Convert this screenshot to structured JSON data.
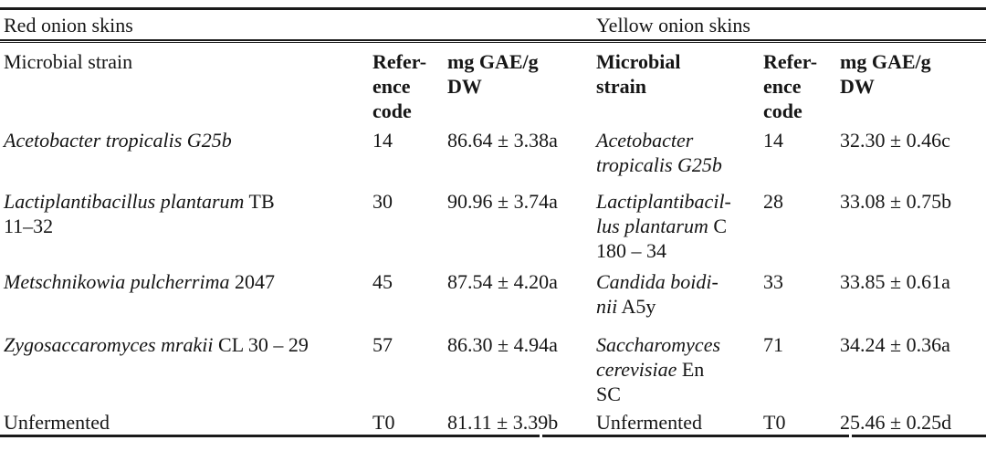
{
  "document": {
    "background": "#ffffff",
    "text_color": "#161616",
    "rule_color": "#1a1a1a"
  },
  "table": {
    "sections": [
      {
        "title": "Red onion skins"
      },
      {
        "title": "Yellow onion skins"
      }
    ],
    "column_headers": [
      {
        "lines": [
          "Microbial strain"
        ],
        "bold": false
      },
      {
        "lines": [
          "Refer-",
          "ence",
          "code"
        ],
        "bold": true
      },
      {
        "lines": [
          "mg GAE/g",
          "DW"
        ],
        "bold": true
      },
      {
        "lines": [
          "Microbial",
          "strain"
        ],
        "bold": true
      },
      {
        "lines": [
          "Refer-",
          "ence",
          "code"
        ],
        "bold": true
      },
      {
        "lines": [
          "mg GAE/g",
          "DW"
        ],
        "bold": true
      }
    ],
    "rows": [
      {
        "red": {
          "strain_lines": [
            [
              {
                "t": "Acetobacter tropicalis G25b",
                "i": true
              }
            ]
          ],
          "code": "14",
          "value": "86.64 ± 3.38a"
        },
        "yellow": {
          "strain_lines": [
            [
              {
                "t": "Acetobacter",
                "i": true
              }
            ],
            [
              {
                "t": "tropicalis G25b",
                "i": true
              }
            ]
          ],
          "code": "14",
          "value": "32.30 ± 0.46c"
        }
      },
      {
        "red": {
          "strain_lines": [
            [
              {
                "t": "Lactiplantibacillus plantarum",
                "i": true
              },
              {
                "t": " TB",
                "i": false
              }
            ],
            [
              {
                "t": "11–32",
                "i": false
              }
            ]
          ],
          "code": "30",
          "value": "90.96 ± 3.74a"
        },
        "yellow": {
          "strain_lines": [
            [
              {
                "t": "Lactiplantibacil-",
                "i": true
              }
            ],
            [
              {
                "t": "lus plantarum",
                "i": true
              },
              {
                "t": " C",
                "i": false
              }
            ],
            [
              {
                "t": "180 – 34",
                "i": false
              }
            ]
          ],
          "code": "28",
          "value": "33.08 ± 0.75b"
        }
      },
      {
        "red": {
          "strain_lines": [
            [
              {
                "t": "Metschnikowia pulcherrima",
                "i": true
              },
              {
                "t": " 2047",
                "i": false
              }
            ]
          ],
          "code": "45",
          "value": "87.54 ± 4.20a"
        },
        "yellow": {
          "strain_lines": [
            [
              {
                "t": "Candida boidi-",
                "i": true
              }
            ],
            [
              {
                "t": "nii",
                "i": true
              },
              {
                "t": " A5y",
                "i": false
              }
            ]
          ],
          "code": "33",
          "value": "33.85 ± 0.61a"
        }
      },
      {
        "red": {
          "strain_lines": [
            [
              {
                "t": "Zygosaccaromyces mrakii",
                "i": true
              },
              {
                "t": " CL 30 – 29",
                "i": false
              }
            ]
          ],
          "code": "57",
          "value": "86.30 ± 4.94a"
        },
        "yellow": {
          "strain_lines": [
            [
              {
                "t": "Saccharomyces",
                "i": true
              }
            ],
            [
              {
                "t": "cerevisiae",
                "i": true
              },
              {
                "t": " En",
                "i": false
              }
            ],
            [
              {
                "t": "SC",
                "i": false
              }
            ]
          ],
          "code": "71",
          "value": "34.24 ± 0.36a"
        }
      },
      {
        "red": {
          "strain_lines": [
            [
              {
                "t": "Unfermented",
                "i": false
              }
            ]
          ],
          "code": "T0",
          "value": "81.11 ± 3.39b"
        },
        "yellow": {
          "strain_lines": [
            [
              {
                "t": "Unfermented",
                "i": false
              }
            ]
          ],
          "code": "T0",
          "value": "25.46 ± 0.25d"
        }
      }
    ]
  }
}
